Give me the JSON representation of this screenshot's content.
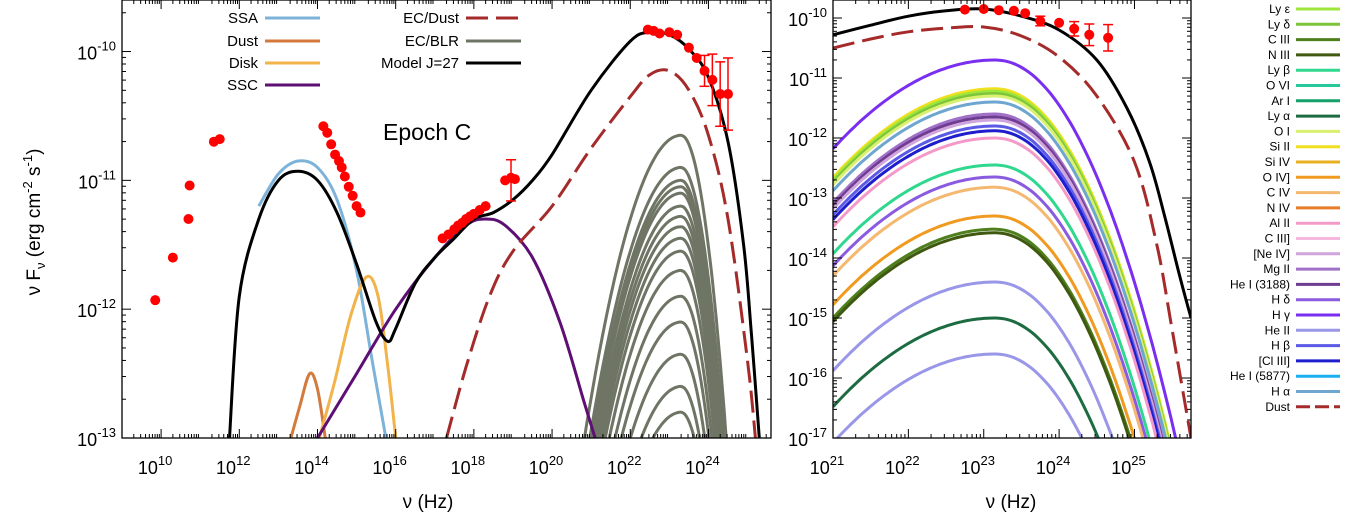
{
  "chart_data": [
    {
      "type": "line",
      "annotation": "Epoch C",
      "xlabel": "ν (Hz)",
      "ylabel": "ν F",
      "ylabel_sub": "ν",
      "ylabel_unit": "(erg cm",
      "ylabel_exp1": "-2",
      "ylabel_s": " s",
      "ylabel_exp2": "-1",
      "ylabel_end": ")",
      "xlim_log": [
        9,
        25.6
      ],
      "ylim_log": [
        -13,
        -9.6
      ],
      "x_ticks": [
        {
          "base": "10",
          "exp": "10",
          "v": 10
        },
        {
          "base": "10",
          "exp": "12",
          "v": 12
        },
        {
          "base": "10",
          "exp": "14",
          "v": 14
        },
        {
          "base": "10",
          "exp": "16",
          "v": 16
        },
        {
          "base": "10",
          "exp": "18",
          "v": 18
        },
        {
          "base": "10",
          "exp": "20",
          "v": 20
        },
        {
          "base": "10",
          "exp": "22",
          "v": 22
        },
        {
          "base": "10",
          "exp": "24",
          "v": 24
        }
      ],
      "y_ticks": [
        {
          "base": "10",
          "exp": "-13",
          "v": -13
        },
        {
          "base": "10",
          "exp": "-12",
          "v": -12
        },
        {
          "base": "10",
          "exp": "-11",
          "v": -11
        },
        {
          "base": "10",
          "exp": "-10",
          "v": -10
        }
      ],
      "legend_placement": "top-center",
      "legend": [
        {
          "name": "SSA",
          "color": "#7eb3d9",
          "dash": ""
        },
        {
          "name": "Dust",
          "color": "#d47a3c",
          "dash": ""
        },
        {
          "name": "Disk",
          "color": "#f2b34a",
          "dash": ""
        },
        {
          "name": "SSC",
          "color": "#5e0f73",
          "dash": ""
        },
        {
          "name": "EC/Dust",
          "color": "#a52a2a",
          "dash": "22,8"
        },
        {
          "name": "EC/BLR",
          "color": "#6f7565",
          "dash": ""
        },
        {
          "name": "Model J=27",
          "color": "#000000",
          "dash": ""
        }
      ],
      "series": [
        {
          "name": "SSA",
          "color": "#7eb3d9",
          "dash": "",
          "width": 3,
          "x": [
            12.5,
            13.0,
            13.5,
            14.0,
            14.5,
            15.0,
            15.4,
            15.75
          ],
          "y": [
            -11.2,
            -10.95,
            -10.85,
            -10.9,
            -11.15,
            -11.7,
            -12.4,
            -13.0
          ]
        },
        {
          "name": "Dust",
          "color": "#d47a3c",
          "dash": "",
          "width": 3,
          "x": [
            13.32,
            13.55,
            13.8,
            14.0,
            14.2
          ],
          "y": [
            -13.0,
            -12.75,
            -12.5,
            -12.62,
            -13.0
          ]
        },
        {
          "name": "Disk",
          "color": "#f2b34a",
          "dash": "",
          "width": 3,
          "x": [
            14.05,
            14.45,
            14.85,
            15.25,
            15.55,
            15.8,
            16.0
          ],
          "y": [
            -13.0,
            -12.55,
            -12.05,
            -11.75,
            -11.9,
            -12.45,
            -13.0
          ]
        },
        {
          "name": "SSC",
          "color": "#5e0f73",
          "dash": "",
          "width": 3,
          "x": [
            14.0,
            15.0,
            16.0,
            17.0,
            17.8,
            18.3,
            18.8,
            19.5,
            20.2,
            20.8,
            21.1
          ],
          "y": [
            -13.0,
            -12.5,
            -12.0,
            -11.6,
            -11.35,
            -11.3,
            -11.35,
            -11.6,
            -12.1,
            -12.7,
            -13.0
          ]
        },
        {
          "name": "EC/Dust",
          "color": "#a52a2a",
          "dash": "22,8",
          "width": 3,
          "x": [
            17.3,
            17.8,
            18.4,
            19.0,
            20.0,
            21.0,
            22.0,
            22.5,
            23.0,
            23.5,
            24.0,
            24.5,
            25.0,
            25.2
          ],
          "y": [
            -13.0,
            -12.45,
            -11.9,
            -11.55,
            -11.2,
            -10.75,
            -10.35,
            -10.18,
            -10.15,
            -10.3,
            -10.65,
            -11.3,
            -12.4,
            -13.0
          ]
        },
        {
          "name": "Model J=27",
          "color": "#000000",
          "dash": "",
          "width": 3,
          "x": [
            11.75,
            12.0,
            12.5,
            13.0,
            13.5,
            14.0,
            14.5,
            15.0,
            15.5,
            15.8,
            16.0,
            16.5,
            17.0,
            17.5,
            18.0,
            18.5,
            19.0,
            19.5,
            20.0,
            21.0,
            22.0,
            22.5,
            23.0,
            23.5,
            24.0,
            24.5,
            24.9,
            25.1,
            25.3
          ],
          "y": [
            -13.0,
            -11.9,
            -11.3,
            -11.0,
            -10.93,
            -11.0,
            -11.25,
            -11.65,
            -12.1,
            -12.25,
            -12.15,
            -11.8,
            -11.6,
            -11.45,
            -11.3,
            -11.25,
            -11.15,
            -11.0,
            -10.8,
            -10.3,
            -9.92,
            -9.85,
            -9.87,
            -9.98,
            -10.2,
            -10.7,
            -11.5,
            -12.2,
            -13.0
          ]
        },
        {
          "name": "EC/BLR",
          "color": "#6f7565",
          "dash": "",
          "width": 3,
          "group": [
            {
              "peak": -10.65,
              "start": 20.5
            },
            {
              "peak": -10.9,
              "start": 20.7
            },
            {
              "peak": -11.0,
              "start": 20.8
            },
            {
              "peak": -11.05,
              "start": 20.85
            },
            {
              "peak": -11.1,
              "start": 20.9
            },
            {
              "peak": -11.2,
              "start": 20.95
            },
            {
              "peak": -11.28,
              "start": 21.0
            },
            {
              "peak": -11.36,
              "start": 21.05
            },
            {
              "peak": -11.45,
              "start": 21.1
            },
            {
              "peak": -11.55,
              "start": 21.2
            },
            {
              "peak": -11.7,
              "start": 21.3
            },
            {
              "peak": -11.9,
              "start": 21.45
            },
            {
              "peak": -12.1,
              "start": 21.6
            },
            {
              "peak": -12.35,
              "start": 21.8
            },
            {
              "peak": -12.6,
              "start": 22.0
            },
            {
              "peak": -12.8,
              "start": 22.2
            }
          ]
        }
      ],
      "observed": {
        "color": "#ff0000",
        "points": [
          {
            "x": 9.85,
            "y": -11.93
          },
          {
            "x": 10.3,
            "y": -11.6
          },
          {
            "x": 10.7,
            "y": -11.3
          },
          {
            "x": 10.73,
            "y": -11.04
          },
          {
            "x": 11.35,
            "y": -10.7
          },
          {
            "x": 11.5,
            "y": -10.68
          },
          {
            "x": 14.15,
            "y": -10.58
          },
          {
            "x": 14.25,
            "y": -10.63
          },
          {
            "x": 14.35,
            "y": -10.72
          },
          {
            "x": 14.45,
            "y": -10.8
          },
          {
            "x": 14.55,
            "y": -10.85
          },
          {
            "x": 14.62,
            "y": -10.9
          },
          {
            "x": 14.7,
            "y": -10.97
          },
          {
            "x": 14.8,
            "y": -11.05
          },
          {
            "x": 14.9,
            "y": -11.12
          },
          {
            "x": 15.0,
            "y": -11.2
          },
          {
            "x": 15.1,
            "y": -11.25
          },
          {
            "x": 17.2,
            "y": -11.45
          },
          {
            "x": 17.35,
            "y": -11.42
          },
          {
            "x": 17.5,
            "y": -11.38
          },
          {
            "x": 17.6,
            "y": -11.35
          },
          {
            "x": 17.7,
            "y": -11.33
          },
          {
            "x": 17.8,
            "y": -11.3
          },
          {
            "x": 17.9,
            "y": -11.28
          },
          {
            "x": 18.0,
            "y": -11.26
          },
          {
            "x": 18.15,
            "y": -11.23
          },
          {
            "x": 18.3,
            "y": -11.2
          },
          {
            "x": 18.8,
            "y": -11.0
          },
          {
            "x": 18.95,
            "y": -10.98
          },
          {
            "x": 19.05,
            "y": -10.99
          },
          {
            "x": 22.45,
            "y": -9.83
          },
          {
            "x": 22.6,
            "y": -9.84
          },
          {
            "x": 22.75,
            "y": -9.86
          },
          {
            "x": 23.0,
            "y": -9.85
          },
          {
            "x": 23.2,
            "y": -9.87
          },
          {
            "x": 23.5,
            "y": -9.97
          },
          {
            "x": 23.7,
            "y": -10.05
          },
          {
            "x": 23.9,
            "y": -10.15
          },
          {
            "x": 24.1,
            "y": -10.22
          },
          {
            "x": 24.3,
            "y": -10.33
          },
          {
            "x": 24.5,
            "y": -10.33
          }
        ]
      }
    },
    {
      "type": "line",
      "xlabel": "ν (Hz)",
      "xlim_log": [
        21,
        25.75
      ],
      "ylim_log": [
        -17,
        -9.7
      ],
      "x_ticks": [
        {
          "base": "10",
          "exp": "21",
          "v": 21
        },
        {
          "base": "10",
          "exp": "22",
          "v": 22
        },
        {
          "base": "10",
          "exp": "23",
          "v": 23
        },
        {
          "base": "10",
          "exp": "24",
          "v": 24
        },
        {
          "base": "10",
          "exp": "25",
          "v": 25
        }
      ],
      "y_ticks": [
        {
          "base": "10",
          "exp": "-17",
          "v": -17
        },
        {
          "base": "10",
          "exp": "-16",
          "v": -16
        },
        {
          "base": "10",
          "exp": "-15",
          "v": -15
        },
        {
          "base": "10",
          "exp": "-14",
          "v": -14
        },
        {
          "base": "10",
          "exp": "-13",
          "v": -13
        },
        {
          "base": "10",
          "exp": "-12",
          "v": -12
        },
        {
          "base": "10",
          "exp": "-11",
          "v": -11
        },
        {
          "base": "10",
          "exp": "-10",
          "v": -10
        }
      ],
      "legend_placement": "outside-right",
      "legend": [
        {
          "name": "Ly ε",
          "color": "#9ee63c"
        },
        {
          "name": "Ly δ",
          "color": "#7cc43a"
        },
        {
          "name": "C III",
          "color": "#4e7f1c"
        },
        {
          "name": "N III",
          "color": "#3f5a10"
        },
        {
          "name": "Ly β",
          "color": "#2fd88e"
        },
        {
          "name": "O VI",
          "color": "#27c89a"
        },
        {
          "name": "Ar I",
          "color": "#16a06a"
        },
        {
          "name": "Ly α",
          "color": "#1d6b41"
        },
        {
          "name": "O I",
          "color": "#d9f070"
        },
        {
          "name": "Si II",
          "color": "#f0e020"
        },
        {
          "name": "Si IV",
          "color": "#e8b020"
        },
        {
          "name": "O IV]",
          "color": "#f09a20"
        },
        {
          "name": "C IV",
          "color": "#f5b870"
        },
        {
          "name": "N IV",
          "color": "#e87c28"
        },
        {
          "name": "Al II",
          "color": "#f49ac8"
        },
        {
          "name": "C III]",
          "color": "#f6b8de"
        },
        {
          "name": "[Ne IV]",
          "color": "#d0a4dc"
        },
        {
          "name": "Mg II",
          "color": "#a070c8"
        },
        {
          "name": "He I (3188)",
          "color": "#6e3c90"
        },
        {
          "name": "H δ",
          "color": "#8a5ae0"
        },
        {
          "name": "H γ",
          "color": "#7a2ef0"
        },
        {
          "name": "He II",
          "color": "#9a96e8"
        },
        {
          "name": "H β",
          "color": "#5a5ae6"
        },
        {
          "name": "[Cl III]",
          "color": "#1e1ecc"
        },
        {
          "name": "He I (5877)",
          "color": "#1ab0f0"
        },
        {
          "name": "H α",
          "color": "#6ea6d0"
        },
        {
          "name": "Dust",
          "color": "#a52a2a"
        }
      ],
      "lines": [
        {
          "name": "H γ",
          "color": "#7a2ef0",
          "peak": -10.7
        },
        {
          "name": "Si II",
          "color": "#f0e020",
          "peak": -11.18
        },
        {
          "name": "Ly ε",
          "color": "#9ee63c",
          "peak": -11.22
        },
        {
          "name": "Ly δ",
          "color": "#7cc43a",
          "peak": -11.26
        },
        {
          "name": "O I",
          "color": "#d9f070",
          "peak": -11.3
        },
        {
          "name": "H α",
          "color": "#6ea6d0",
          "peak": -11.4
        },
        {
          "name": "Mg II",
          "color": "#a070c8",
          "peak": -11.6
        },
        {
          "name": "He I (3188)",
          "color": "#6e3c90",
          "peak": -11.65
        },
        {
          "name": "[Ne IV]",
          "color": "#d0a4dc",
          "peak": -11.7
        },
        {
          "name": "H β",
          "color": "#5a5ae6",
          "peak": -11.8
        },
        {
          "name": "[Cl III]",
          "color": "#1e1ecc",
          "peak": -11.88
        },
        {
          "name": "Al II",
          "color": "#f49ac8",
          "peak": -12.0
        },
        {
          "name": "Ly β",
          "color": "#2fd88e",
          "peak": -12.45
        },
        {
          "name": "H δ",
          "color": "#8a5ae0",
          "peak": -12.65
        },
        {
          "name": "C IV",
          "color": "#f5b870",
          "peak": -12.82
        },
        {
          "name": "O IV]",
          "color": "#f09a20",
          "peak": -13.3
        },
        {
          "name": "C III",
          "color": "#4e7f1c",
          "peak": -13.52
        },
        {
          "name": "N III",
          "color": "#3f5a10",
          "peak": -13.58
        },
        {
          "name": "He II",
          "color": "#9a96e8",
          "peak": -14.4
        },
        {
          "name": "Ly α",
          "color": "#1d6b41",
          "peak": -15.0
        },
        {
          "name": "He II",
          "color": "#9a96e8",
          "peak": -15.6
        },
        {
          "name": "He I (5877)",
          "color": "#1ab0f0",
          "peak": -16.15
        }
      ],
      "dust": {
        "name": "Dust",
        "color": "#a52a2a",
        "dash": "22,8",
        "x": [
          21.0,
          21.5,
          22.0,
          22.5,
          23.0,
          23.5,
          24.0,
          24.5,
          25.0,
          25.3,
          25.5,
          25.75
        ],
        "y": [
          -10.5,
          -10.35,
          -10.23,
          -10.17,
          -10.15,
          -10.3,
          -10.65,
          -11.3,
          -12.4,
          -13.8,
          -15.2,
          -17.0
        ]
      },
      "model": {
        "name": "Model J=27",
        "color": "#000000",
        "x": [
          21.0,
          21.5,
          22.0,
          22.5,
          23.0,
          23.5,
          24.0,
          24.5,
          24.9,
          25.2,
          25.4,
          25.6,
          25.75
        ],
        "y": [
          -10.28,
          -10.12,
          -9.97,
          -9.88,
          -9.85,
          -9.97,
          -10.2,
          -10.7,
          -11.5,
          -12.4,
          -13.3,
          -14.3,
          -15.0
        ]
      },
      "observed": {
        "color": "#ff0000",
        "points": [
          {
            "x": 22.75,
            "y": -9.86
          },
          {
            "x": 23.0,
            "y": -9.85
          },
          {
            "x": 23.2,
            "y": -9.87
          },
          {
            "x": 23.4,
            "y": -9.88
          },
          {
            "x": 23.55,
            "y": -9.92
          },
          {
            "x": 23.75,
            "y": -10.05
          },
          {
            "x": 24.0,
            "y": -10.08
          },
          {
            "x": 24.2,
            "y": -10.18
          },
          {
            "x": 24.4,
            "y": -10.28
          },
          {
            "x": 24.65,
            "y": -10.33
          }
        ]
      }
    }
  ]
}
